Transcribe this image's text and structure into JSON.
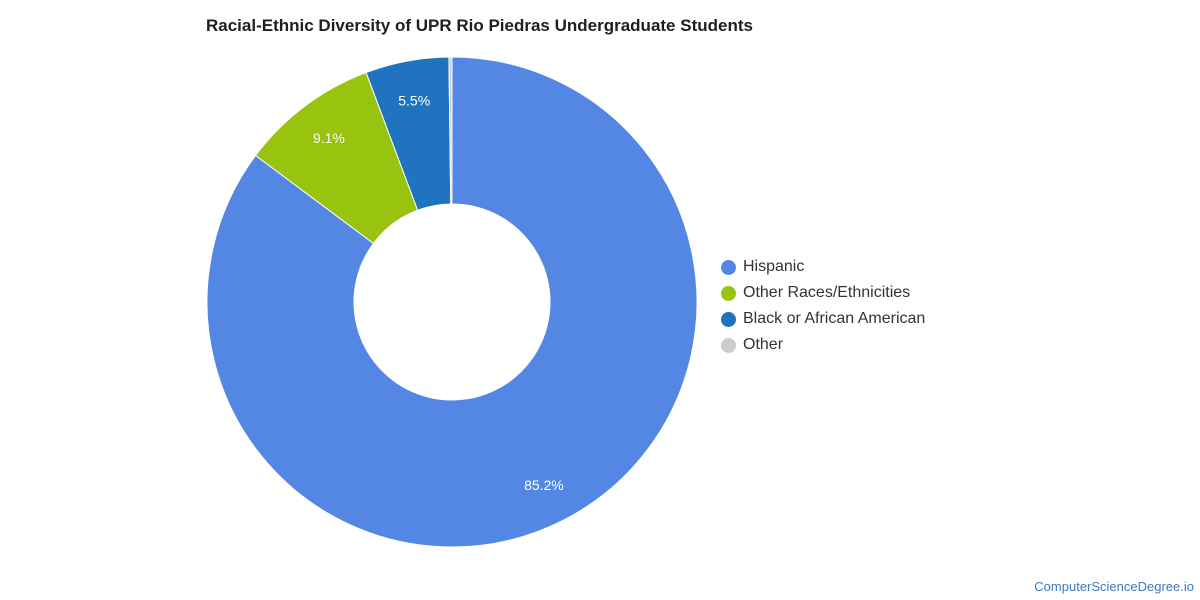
{
  "chart_data": {
    "type": "pie",
    "subtype": "donut",
    "title": "Racial-Ethnic Diversity of UPR Rio Piedras Undergraduate Students",
    "slices": [
      {
        "name": "Hispanic",
        "value": 85.2,
        "label": "85.2%",
        "color": "#5487e3"
      },
      {
        "name": "Other Races/Ethnicities",
        "value": 9.1,
        "label": "9.1%",
        "color": "#98c30e"
      },
      {
        "name": "Black or African American",
        "value": 5.5,
        "label": "5.5%",
        "color": "#1f73bf"
      },
      {
        "name": "Other",
        "value": 0.2,
        "label": "",
        "color": "#cccccc"
      }
    ],
    "legend_position": "right"
  },
  "credit": "ComputerScienceDegree.io"
}
